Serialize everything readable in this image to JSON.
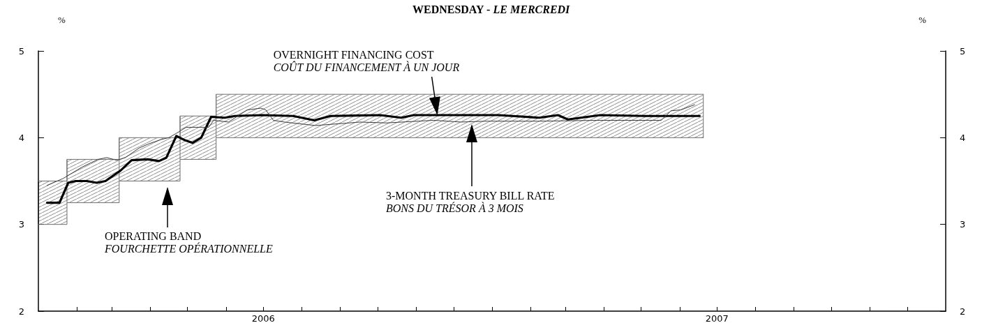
{
  "chart_data": {
    "type": "line",
    "title": "WEDNESDAY - LE MERCREDI",
    "ylabel": "%",
    "y2label": "%",
    "xlim": [
      "2006-01-01",
      "2008-01-01"
    ],
    "xticks": [
      {
        "value": "2006-02-01",
        "label": null
      },
      {
        "value": "2006-03-01",
        "label": null
      },
      {
        "value": "2006-04-01",
        "label": null
      },
      {
        "value": "2006-05-01",
        "label": null
      },
      {
        "value": "2006-06-01",
        "label": null
      },
      {
        "value": "2006-07-01",
        "label": "2006"
      },
      {
        "value": "2006-08-01",
        "label": null
      },
      {
        "value": "2006-09-01",
        "label": null
      },
      {
        "value": "2006-10-01",
        "label": null
      },
      {
        "value": "2006-11-01",
        "label": null
      },
      {
        "value": "2006-12-01",
        "label": null
      },
      {
        "value": "2007-01-01",
        "label": null
      },
      {
        "value": "2007-02-01",
        "label": null
      },
      {
        "value": "2007-03-01",
        "label": null
      },
      {
        "value": "2007-04-01",
        "label": null
      },
      {
        "value": "2007-05-01",
        "label": null
      },
      {
        "value": "2007-06-01",
        "label": null
      },
      {
        "value": "2007-07-01",
        "label": "2007"
      },
      {
        "value": "2007-08-01",
        "label": null
      },
      {
        "value": "2007-09-01",
        "label": null
      },
      {
        "value": "2007-10-01",
        "label": null
      },
      {
        "value": "2007-11-01",
        "label": null
      },
      {
        "value": "2007-12-01",
        "label": null
      }
    ],
    "ylim": [
      2,
      5
    ],
    "yticks": [
      2,
      3,
      4,
      5
    ],
    "y2lim": [
      2,
      5
    ],
    "y2ticks": [
      2,
      3,
      4,
      5
    ],
    "grid": false,
    "marker": "none",
    "line_style": "solid",
    "series": [
      {
        "color": "#6e6e6e",
        "x": [
          "2006-01-01",
          "2006-01-24",
          "2006-01-24",
          "2006-03-07",
          "2006-03-07",
          "2006-04-25",
          "2006-04-25",
          "2006-05-24",
          "2006-05-24",
          "2007-06-20"
        ],
        "values": [
          3.5,
          3.5,
          3.75,
          3.75,
          4.0,
          4.0,
          4.25,
          4.25,
          4.5,
          4.5
        ]
      },
      {
        "color": "#6e6e6e",
        "x": [
          "2006-01-01",
          "2006-01-24",
          "2006-01-24",
          "2006-03-07",
          "2006-03-07",
          "2006-04-25",
          "2006-04-25",
          "2006-05-24",
          "2006-05-24",
          "2007-06-20"
        ],
        "values": [
          3.0,
          3.0,
          3.25,
          3.25,
          3.5,
          3.5,
          3.75,
          3.75,
          4.0,
          4.0
        ]
      },
      {
        "color": "#000000",
        "x": [
          "2006-01-08",
          "2006-01-18",
          "2006-01-25",
          "2006-01-31",
          "2006-02-09",
          "2006-02-17",
          "2006-02-24",
          "2006-03-03",
          "2006-03-08",
          "2006-03-17",
          "2006-03-30",
          "2006-04-08",
          "2006-04-14",
          "2006-04-22",
          "2006-04-29",
          "2006-05-05",
          "2006-05-12",
          "2006-05-20",
          "2006-05-31",
          "2006-06-08",
          "2006-06-30",
          "2006-07-25",
          "2006-08-11",
          "2006-08-24",
          "2006-10-03",
          "2006-10-20",
          "2006-10-30",
          "2007-01-06",
          "2007-02-08",
          "2007-02-23",
          "2007-03-03",
          "2007-03-29",
          "2007-05-04",
          "2007-05-17",
          "2007-06-17"
        ],
        "values": [
          3.25,
          3.25,
          3.48,
          3.5,
          3.5,
          3.48,
          3.5,
          3.57,
          3.62,
          3.74,
          3.75,
          3.73,
          3.77,
          4.02,
          3.97,
          3.94,
          4.0,
          4.24,
          4.23,
          4.25,
          4.26,
          4.25,
          4.2,
          4.25,
          4.26,
          4.23,
          4.26,
          4.26,
          4.23,
          4.26,
          4.21,
          4.26,
          4.25,
          4.25,
          4.25
        ]
      },
      {
        "color": "#3a3a3a",
        "x": [
          "2006-01-08",
          "2006-01-21",
          "2006-02-05",
          "2006-02-18",
          "2006-02-25",
          "2006-03-05",
          "2006-03-12",
          "2006-03-23",
          "2006-03-31",
          "2006-04-10",
          "2006-04-16",
          "2006-04-22",
          "2006-04-30",
          "2006-05-18",
          "2006-05-22",
          "2006-06-03",
          "2006-06-18",
          "2006-06-29",
          "2006-07-03",
          "2006-07-09",
          "2006-07-18",
          "2006-08-12",
          "2006-09-17",
          "2006-10-08",
          "2006-11-15",
          "2006-12-07",
          "2006-12-27",
          "2007-02-07",
          "2007-03-29",
          "2007-05-17",
          "2007-05-25",
          "2007-06-02",
          "2007-06-13"
        ],
        "values": [
          3.45,
          3.53,
          3.66,
          3.75,
          3.77,
          3.74,
          3.77,
          3.88,
          3.93,
          3.98,
          4.0,
          4.05,
          4.12,
          4.12,
          4.2,
          4.18,
          4.32,
          4.34,
          4.32,
          4.2,
          4.18,
          4.14,
          4.18,
          4.17,
          4.2,
          4.18,
          4.19,
          4.19,
          4.2,
          4.2,
          4.31,
          4.32,
          4.38
        ]
      }
    ],
    "annotations": [
      {
        "text": "OVERNIGHT FINANCING COST\nCOÛT DU FINANCEMENT À UN JOUR",
        "x": "2006-11-18",
        "y": 4.26
      },
      "3-MONTH TREASURY BILL RATE\nBONS DU TRÉSOR À 3 MOIS",
      "OPERATING BAND\nFOURCHETTE OPÉRATIONNELLE"
    ]
  }
}
